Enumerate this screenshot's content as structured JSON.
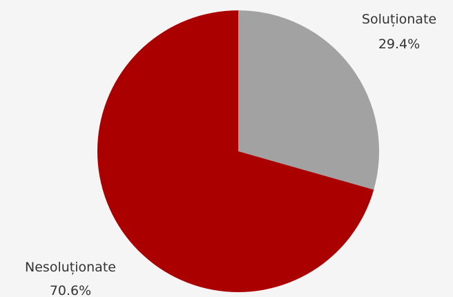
{
  "chart_data": {
    "type": "pie",
    "title": "",
    "slices": [
      {
        "label": "Soluționate",
        "value": 29.4,
        "value_label": "29.4%",
        "color": "#a2a2a2"
      },
      {
        "label": "Nesoluționate",
        "value": 70.6,
        "value_label": "70.6%",
        "color": "#ab0000"
      }
    ],
    "start_angle_deg": 0,
    "direction": "clockwise",
    "legend": "none"
  }
}
